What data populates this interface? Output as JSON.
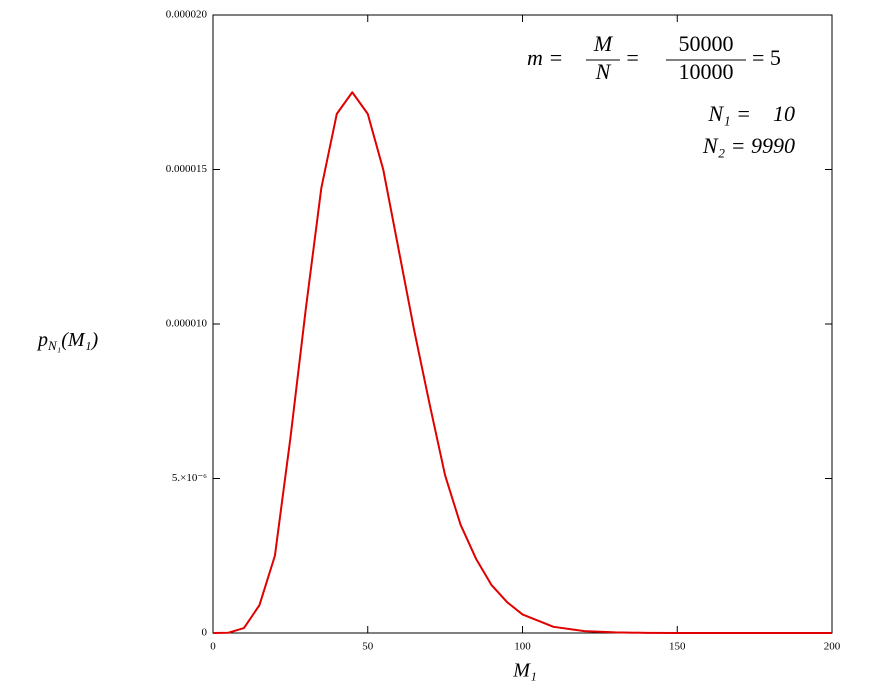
{
  "chart_data": {
    "type": "line",
    "x_label": "M₁",
    "y_label": [
      "p",
      "N₁",
      "(M₁)"
    ],
    "annotations": {
      "formula": {
        "lead": "m =",
        "frac1": [
          "M",
          "N"
        ],
        "mid": "=",
        "frac2": [
          "50000",
          "10000"
        ],
        "tail": "= 5"
      },
      "lines": [
        "N₁ =    10",
        "N₂ = 9990"
      ]
    },
    "x": [
      0,
      5,
      10,
      15,
      20,
      25,
      30,
      35,
      40,
      45,
      50,
      55,
      60,
      65,
      70,
      75,
      80,
      85,
      90,
      95,
      100,
      110,
      120,
      130,
      140,
      150,
      175,
      200
    ],
    "series": [
      {
        "color": "#e00000",
        "values": [
          0,
          1e-08,
          1.6e-07,
          9e-07,
          2.5e-06,
          6.3e-06,
          1.05e-05,
          1.44e-05,
          1.68e-05,
          1.75e-05,
          1.68e-05,
          1.5e-05,
          1.24e-05,
          9.8e-06,
          7.4e-06,
          5.1e-06,
          3.5e-06,
          2.4e-06,
          1.55e-06,
          1e-06,
          6e-07,
          2e-07,
          6e-08,
          2e-08,
          5e-09,
          0,
          0,
          0
        ]
      }
    ],
    "xlim": [
      0,
      200
    ],
    "ylim": [
      0,
      2e-05
    ],
    "xticks": [
      0,
      50,
      100,
      150,
      200
    ],
    "yticks": [
      0,
      {
        "value": 5e-06,
        "label": "5.×10⁻⁶"
      },
      {
        "value": 1e-05,
        "label": "0.000010"
      },
      {
        "value": 1.5e-05,
        "label": "0.000015"
      },
      {
        "value": 2e-05,
        "label": "0.000020"
      }
    ],
    "grid": false
  }
}
